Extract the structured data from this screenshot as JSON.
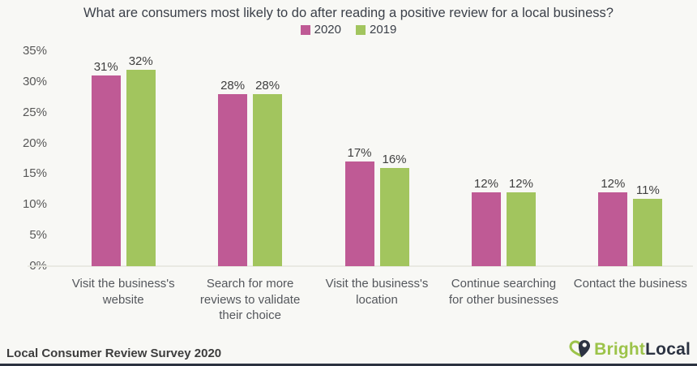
{
  "chart_data": {
    "type": "bar",
    "title": "What are consumers most likely to do after reading a positive review for a local business?",
    "categories": [
      "Visit the business's website",
      "Search for more reviews to validate their choice",
      "Visit the business's location",
      "Continue searching for other businesses",
      "Contact the business"
    ],
    "series": [
      {
        "name": "2020",
        "color": "#bf5a95",
        "values": [
          31,
          28,
          17,
          12,
          12
        ]
      },
      {
        "name": "2019",
        "color": "#a2c55e",
        "values": [
          32,
          28,
          16,
          12,
          11
        ]
      }
    ],
    "xlabel": "",
    "ylabel": "",
    "ylim": [
      0,
      35
    ],
    "ytick_step": 5,
    "ytick_suffix": "%",
    "value_suffix": "%",
    "grid": false,
    "legend_position": "top-center"
  },
  "footer": {
    "source_label": "Local Consumer Review Survey 2020"
  },
  "logo": {
    "icon": "map-pin-icon",
    "text_primary": "Bright",
    "text_secondary": "Local"
  },
  "colors": {
    "background": "#f8f8f5",
    "series_2020": "#bf5a95",
    "series_2019": "#a2c55e",
    "title_text": "#3b4049",
    "axis_text": "#585858",
    "value_label_text": "#3f3f3f",
    "baseline": "#e9e9e2",
    "bottom_border": "#2b3240",
    "logo_green": "#9cc349",
    "logo_dark": "#2c3342"
  }
}
